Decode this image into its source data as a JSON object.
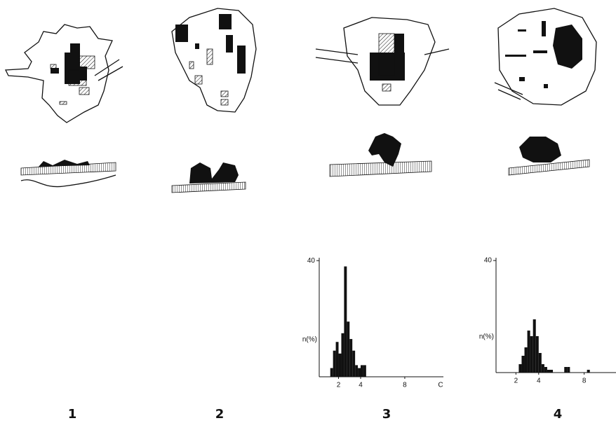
{
  "panels": [
    {
      "label": "1"
    },
    {
      "label": "2"
    },
    {
      "label": "3"
    },
    {
      "label": "4"
    }
  ],
  "chart_data": [
    {
      "type": "histogram",
      "ylabel": "n(%)",
      "xlabel": "C",
      "bins": [
        1.25,
        1.5,
        1.75,
        2,
        2.25,
        2.5,
        2.75,
        3,
        3.25,
        3.5,
        3.75,
        4,
        4.25,
        4.5
      ],
      "values": [
        3,
        9,
        12,
        8,
        15,
        38,
        19,
        13,
        9,
        4,
        3,
        4,
        4
      ],
      "color": "#111111",
      "xlim": [
        0.25,
        11.5
      ],
      "ylim": [
        0,
        41
      ],
      "xticks": [
        2,
        4,
        8
      ],
      "yticks": [
        40
      ]
    },
    {
      "type": "histogram",
      "ylabel": "n(%)",
      "bins": [
        2.25,
        2.5,
        2.75,
        3,
        3.25,
        3.5,
        3.75,
        4,
        4.25,
        4.5,
        4.75,
        5,
        5.25,
        5.5,
        5.75,
        6,
        6.25,
        6.5,
        6.75,
        7,
        7.25,
        7.5,
        7.75,
        8,
        8.25,
        8.5
      ],
      "values": [
        3,
        6,
        9,
        15,
        13,
        19,
        13,
        7,
        3,
        2,
        1,
        1,
        0,
        0,
        0,
        0,
        2,
        2,
        0,
        0,
        0,
        0,
        0,
        0,
        1
      ],
      "color": "#111111",
      "xlim": [
        0.25,
        10.8
      ],
      "ylim": [
        0,
        41
      ],
      "xticks": [
        2,
        4,
        8
      ],
      "yticks": [
        40
      ]
    }
  ]
}
